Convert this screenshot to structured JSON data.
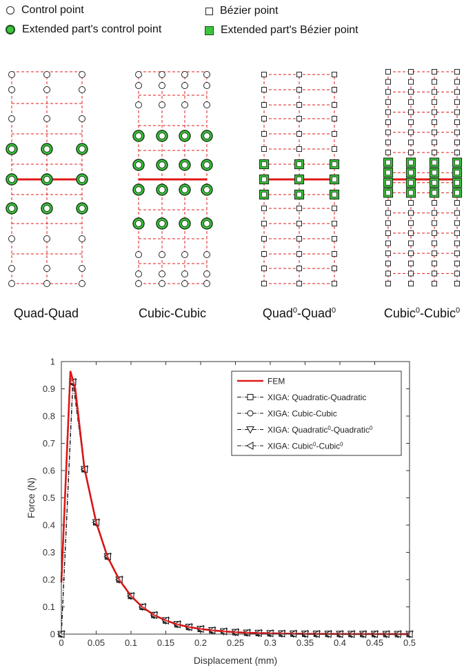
{
  "legend_top": {
    "control_point": "Control point",
    "bezier_point": "Bézier point",
    "ext_control_point": "Extended part's control point",
    "ext_bezier_point": "Extended part's Bézier point"
  },
  "meshes": [
    {
      "label": "Quad-Quad",
      "sup": "",
      "label2": "",
      "sup2": "",
      "type": "circle"
    },
    {
      "label": "Cubic-Cubic",
      "sup": "",
      "label2": "",
      "sup2": "",
      "type": "circle"
    },
    {
      "label": "Quad",
      "sup": "0",
      "label2": "-Quad",
      "sup2": "0",
      "type": "square"
    },
    {
      "label": "Cubic",
      "sup": "0",
      "label2": "-Cubic",
      "sup2": "0",
      "type": "square"
    }
  ],
  "colors": {
    "fem": "#e01818",
    "xiga": "#111111",
    "ext_fill": "#3cc43c",
    "dash_grid": "#e01818"
  },
  "chart_data": {
    "type": "line",
    "title": "",
    "xlabel": "Displacement (mm)",
    "ylabel": "Force (N)",
    "xlim": [
      0,
      0.5
    ],
    "ylim": [
      0,
      1
    ],
    "xticks": [
      "0",
      "0.05",
      "0.1",
      "0.15",
      "0.2",
      "0.25",
      "0.3",
      "0.35",
      "0.4",
      "0.45",
      "0.5"
    ],
    "yticks": [
      "0",
      "0.1",
      "0.2",
      "0.3",
      "0.4",
      "0.5",
      "0.6",
      "0.7",
      "0.8",
      "0.9",
      "1"
    ],
    "legend_position": "top-right",
    "series": [
      {
        "name": "FEM",
        "style": "solid-red",
        "x": [
          0,
          0.013,
          0.02,
          0.033,
          0.05,
          0.066,
          0.083,
          0.1,
          0.116,
          0.133,
          0.15,
          0.166,
          0.183,
          0.2,
          0.216,
          0.233,
          0.25,
          0.266,
          0.283,
          0.3,
          0.35,
          0.4,
          0.45,
          0.5
        ],
        "y": [
          0.19,
          0.965,
          0.9,
          0.61,
          0.41,
          0.285,
          0.2,
          0.14,
          0.1,
          0.07,
          0.05,
          0.036,
          0.026,
          0.019,
          0.014,
          0.01,
          0.007,
          0.005,
          0.004,
          0.003,
          0.001,
          0.0005,
          0.0002,
          0.0001
        ]
      },
      {
        "name": "XIGA: Quadratic-Quadratic",
        "marker": "square",
        "x": [
          0,
          0.0166,
          0.0333,
          0.05,
          0.0666,
          0.0833,
          0.1,
          0.1166,
          0.1333,
          0.15,
          0.1666,
          0.1833,
          0.2,
          0.2166,
          0.2333,
          0.25,
          0.2666,
          0.2833,
          0.3,
          0.3166,
          0.3333,
          0.35,
          0.3666,
          0.3833,
          0.4,
          0.4166,
          0.4333,
          0.45,
          0.4666,
          0.4833,
          0.5
        ],
        "y": [
          0,
          0.925,
          0.605,
          0.41,
          0.285,
          0.2,
          0.14,
          0.1,
          0.07,
          0.05,
          0.036,
          0.026,
          0.019,
          0.014,
          0.01,
          0.007,
          0.005,
          0.004,
          0.003,
          0.002,
          0.0015,
          0.001,
          0.0008,
          0.0006,
          0.0004,
          0.0003,
          0.0002,
          0.0002,
          0.0001,
          0.0001,
          0.0001
        ]
      },
      {
        "name": "XIGA: Cubic-Cubic",
        "marker": "circle",
        "x": [
          0,
          0.0166,
          0.0333,
          0.05,
          0.0666,
          0.0833,
          0.1,
          0.1166,
          0.1333,
          0.15,
          0.1666,
          0.1833,
          0.2,
          0.2166,
          0.2333,
          0.25,
          0.2666,
          0.2833,
          0.3,
          0.3166,
          0.3333,
          0.35,
          0.3666,
          0.3833,
          0.4,
          0.4166,
          0.4333,
          0.45,
          0.4666,
          0.4833,
          0.5
        ],
        "y": [
          0,
          0.925,
          0.605,
          0.41,
          0.285,
          0.2,
          0.14,
          0.1,
          0.07,
          0.05,
          0.036,
          0.026,
          0.019,
          0.014,
          0.01,
          0.007,
          0.005,
          0.004,
          0.003,
          0.002,
          0.0015,
          0.001,
          0.0008,
          0.0006,
          0.0004,
          0.0003,
          0.0002,
          0.0002,
          0.0001,
          0.0001,
          0.0001
        ]
      },
      {
        "name": "XIGA: Quadratic",
        "name_sup": "0",
        "name2": "-Quadratic",
        "name2_sup": "0",
        "marker": "triangle-down",
        "x": [
          0,
          0.0166,
          0.0333,
          0.05,
          0.0666,
          0.0833,
          0.1,
          0.1166,
          0.1333,
          0.15,
          0.1666,
          0.1833,
          0.2,
          0.2166,
          0.2333,
          0.25,
          0.2666,
          0.2833,
          0.3,
          0.3166,
          0.3333,
          0.35,
          0.3666,
          0.3833,
          0.4,
          0.4166,
          0.4333,
          0.45,
          0.4666,
          0.4833,
          0.5
        ],
        "y": [
          0,
          0.925,
          0.605,
          0.41,
          0.285,
          0.2,
          0.14,
          0.1,
          0.07,
          0.05,
          0.036,
          0.026,
          0.019,
          0.014,
          0.01,
          0.007,
          0.005,
          0.004,
          0.003,
          0.002,
          0.0015,
          0.001,
          0.0008,
          0.0006,
          0.0004,
          0.0003,
          0.0002,
          0.0002,
          0.0001,
          0.0001,
          0.0001
        ]
      },
      {
        "name": "XIGA: Cubic",
        "name_sup": "0",
        "name2": "-Cubic",
        "name2_sup": "0",
        "marker": "triangle-left",
        "x": [
          0,
          0.0166,
          0.0333,
          0.05,
          0.0666,
          0.0833,
          0.1,
          0.1166,
          0.1333,
          0.15,
          0.1666,
          0.1833,
          0.2,
          0.2166,
          0.2333,
          0.25,
          0.2666,
          0.2833,
          0.3,
          0.3166,
          0.3333,
          0.35,
          0.3666,
          0.3833,
          0.4,
          0.4166,
          0.4333,
          0.45,
          0.4666,
          0.4833,
          0.5
        ],
        "y": [
          0,
          0.925,
          0.605,
          0.41,
          0.285,
          0.2,
          0.14,
          0.1,
          0.07,
          0.05,
          0.036,
          0.026,
          0.019,
          0.014,
          0.01,
          0.007,
          0.005,
          0.004,
          0.003,
          0.002,
          0.0015,
          0.001,
          0.0008,
          0.0006,
          0.0004,
          0.0003,
          0.0002,
          0.0002,
          0.0001,
          0.0001,
          0.0001
        ]
      }
    ]
  }
}
